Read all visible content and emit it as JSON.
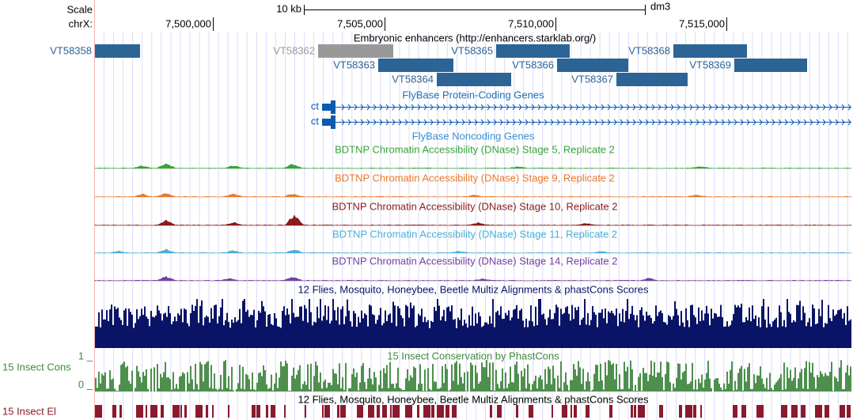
{
  "ruler": {
    "scale_label": "Scale",
    "scale_text": "10 kb",
    "assembly": "dm3",
    "chrom": "chrX:",
    "positions": [
      "7,500,000",
      "7,505,000",
      "7,510,000",
      "7,515,000"
    ]
  },
  "tracks": {
    "enhancers": {
      "title": "Embryonic enhancers (http://enhancers.starklab.org/)",
      "items": [
        "VT58358",
        "VT58362",
        "VT58365",
        "VT58368",
        "VT58363",
        "VT58366",
        "VT58369",
        "VT58364",
        "VT58367"
      ]
    },
    "protein_coding": {
      "title": "FlyBase Protein-Coding Genes",
      "genes": [
        "ct",
        "ct"
      ]
    },
    "noncoding": {
      "title": "FlyBase Noncoding Genes"
    },
    "dnase": [
      "BDTNP Chromatin Accessibility (DNase) Stage 5, Replicate 2",
      "BDTNP Chromatin Accessibility (DNase) Stage 9, Replicate 2",
      "BDTNP Chromatin Accessibility (DNase) Stage 10, Replicate 2",
      "BDTNP Chromatin Accessibility (DNase) Stage 11, Replicate 2",
      "BDTNP Chromatin Accessibility (DNase) Stage 14, Replicate 2"
    ],
    "multiz": {
      "title": "12 Flies, Mosquito, Honeybee, Beetle Multiz Alignments & phastCons Scores"
    },
    "phastcons": {
      "title": "15 Insect Conservation by PhastCons",
      "label": "15 Insect Cons",
      "top": "1 _",
      "bottom": "0 _"
    },
    "elements": {
      "title": "12 Flies, Mosquito, Honeybee, Beetle Multiz Alignments & phastCons Scores",
      "label": "15 Insect El"
    }
  }
}
